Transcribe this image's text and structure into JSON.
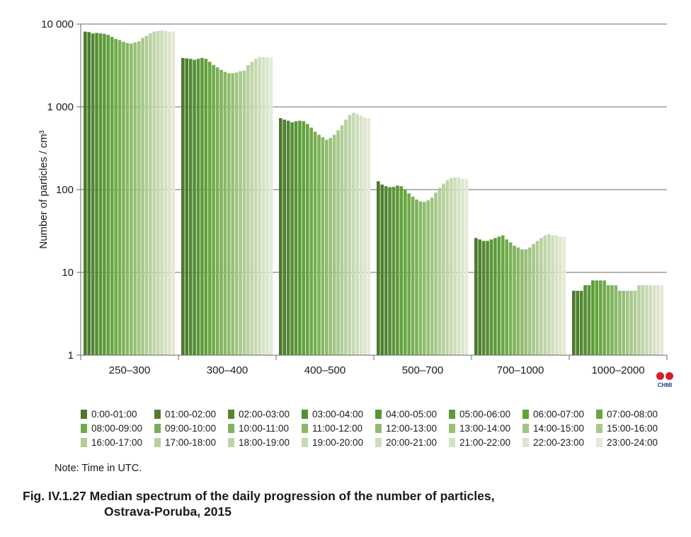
{
  "chart_data": {
    "type": "bar",
    "ylabel": "Number of particles / cm³",
    "yscale": "log",
    "ylim": [
      1,
      10000
    ],
    "yticks": [
      {
        "value": 10000,
        "label": "10 000"
      },
      {
        "value": 1000,
        "label": "1 000"
      },
      {
        "value": 100,
        "label": "100"
      },
      {
        "value": 10,
        "label": "10"
      },
      {
        "value": 1,
        "label": "1"
      }
    ],
    "grid": true,
    "categories": [
      "250–300",
      "300–400",
      "400–500",
      "500–700",
      "700–1000",
      "1000–2000"
    ],
    "series_names": [
      "0:00-01:00",
      "01:00-02:00",
      "02:00-03:00",
      "03:00-04:00",
      "04:00-05:00",
      "05:00-06:00",
      "06:00-07:00",
      "07:00-08:00",
      "08:00-09:00",
      "09:00-10:00",
      "10:00-11:00",
      "11:00-12:00",
      "12:00-13:00",
      "13:00-14:00",
      "14:00-15:00",
      "15:00-16:00",
      "16:00-17:00",
      "17:00-18:00",
      "18:00-19:00",
      "19:00-20:00",
      "20:00-21:00",
      "21:00-22:00",
      "22:00-23:00",
      "23:00-24:00"
    ],
    "series_colors": [
      "#4a7a2e",
      "#4e8030",
      "#528733",
      "#568e35",
      "#5a9437",
      "#5e9b3a",
      "#62a13d",
      "#67a642",
      "#70ab4b",
      "#78af54",
      "#80b35d",
      "#88b866",
      "#90bc6f",
      "#98c078",
      "#a0c582",
      "#a8c98c",
      "#b0cd96",
      "#b8d1a0",
      "#bfd5a9",
      "#c7d9b2",
      "#cedebb",
      "#d5e2c4",
      "#dce6cd",
      "#e3ead6"
    ],
    "values": [
      [
        8100,
        8000,
        7700,
        7800,
        7700,
        7600,
        7400,
        7000,
        6600,
        6400,
        6100,
        5900,
        5800,
        6000,
        6200,
        6800,
        7200,
        7700,
        8100,
        8300,
        8400,
        8300,
        8000,
        8200
      ],
      [
        3900,
        3850,
        3800,
        3700,
        3800,
        3900,
        3800,
        3500,
        3200,
        3000,
        2800,
        2650,
        2550,
        2550,
        2600,
        2700,
        2750,
        3200,
        3500,
        3800,
        4000,
        4000,
        3950,
        3900
      ],
      [
        730,
        700,
        680,
        650,
        670,
        680,
        670,
        620,
        560,
        500,
        460,
        430,
        400,
        420,
        460,
        520,
        600,
        700,
        800,
        850,
        820,
        780,
        740,
        730
      ],
      [
        126,
        115,
        110,
        107,
        108,
        112,
        110,
        100,
        90,
        82,
        76,
        72,
        71,
        74,
        80,
        92,
        105,
        118,
        130,
        138,
        140,
        140,
        135,
        135
      ],
      [
        26,
        25,
        24,
        24,
        25,
        26,
        27,
        28,
        25,
        23,
        21,
        20,
        19,
        19,
        20,
        22,
        24,
        26,
        28,
        29,
        28,
        28,
        27,
        27
      ],
      [
        6,
        6,
        6,
        7,
        7,
        8,
        8,
        8,
        8,
        7,
        7,
        7,
        6,
        6,
        6,
        6,
        6,
        7,
        7,
        7,
        7,
        7,
        7,
        7
      ]
    ]
  },
  "note": "Note: Time in UTC.",
  "caption": {
    "line1": "Fig. IV.1.27  Median spectrum of the daily progression of the number of particles,",
    "line2": "Ostrava-Poruba, 2015"
  },
  "logo": {
    "text": "CHMI"
  }
}
